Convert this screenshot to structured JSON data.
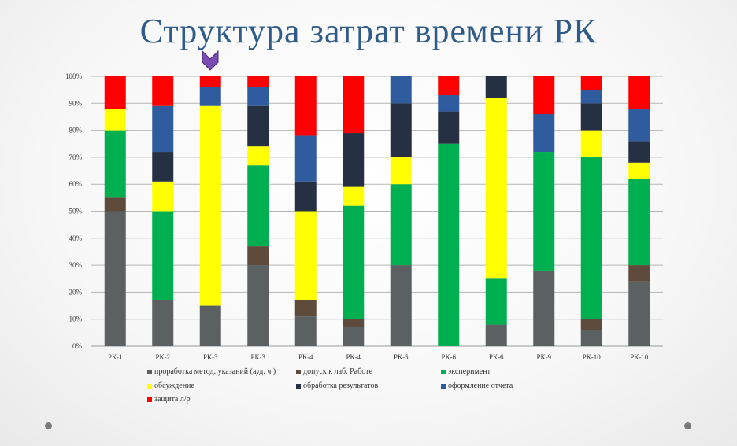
{
  "title": "Структура затрат времени РК",
  "colors": {
    "title": "#2f5b8a",
    "marker": "#7a4bb0"
  },
  "chart_data": {
    "type": "bar",
    "stacked": true,
    "categories": [
      "РК-1",
      "РК-2",
      "РК-3",
      "РК-3",
      "РК-4",
      "РК-4",
      "РК-5",
      "РК-6",
      "РК-6",
      "РК-9",
      "РК-10",
      "РК-10"
    ],
    "y_ticks": [
      "0%",
      "10%",
      "20%",
      "30%",
      "40%",
      "50%",
      "60%",
      "70%",
      "80%",
      "90%",
      "100%"
    ],
    "ylim": [
      0,
      100
    ],
    "grid": true,
    "legend_position": "bottom",
    "series": [
      {
        "name": "проработка метод. указаний (ауд. ч )",
        "color": "#5b6063",
        "values": [
          50,
          17,
          15,
          30,
          11,
          7,
          30,
          0,
          8,
          28,
          6,
          24
        ]
      },
      {
        "name": "допуск к лаб. Работе",
        "color": "#5e4b3c",
        "values": [
          5,
          0,
          0,
          7,
          6,
          3,
          0,
          0,
          0,
          0,
          4,
          6
        ]
      },
      {
        "name": "эксперимент",
        "color": "#00b050",
        "values": [
          25,
          33,
          0,
          30,
          0,
          42,
          30,
          75,
          17,
          44,
          60,
          32
        ]
      },
      {
        "name": "обсуждение",
        "color": "#ffff00",
        "values": [
          8,
          11,
          74,
          7,
          33,
          7,
          10,
          0,
          67,
          0,
          10,
          6
        ]
      },
      {
        "name": "обработка результатов",
        "color": "#253142",
        "values": [
          0,
          11,
          0,
          15,
          11,
          20,
          20,
          12,
          8,
          0,
          10,
          8
        ]
      },
      {
        "name": "оформление отчета",
        "color": "#2e5c9e",
        "values": [
          0,
          17,
          7,
          7,
          17,
          0,
          10,
          6,
          0,
          14,
          5,
          12
        ]
      },
      {
        "name": "защита л/р",
        "color": "#ff0000",
        "values": [
          12,
          11,
          4,
          4,
          22,
          21,
          0,
          7,
          0,
          14,
          5,
          12
        ]
      }
    ]
  }
}
